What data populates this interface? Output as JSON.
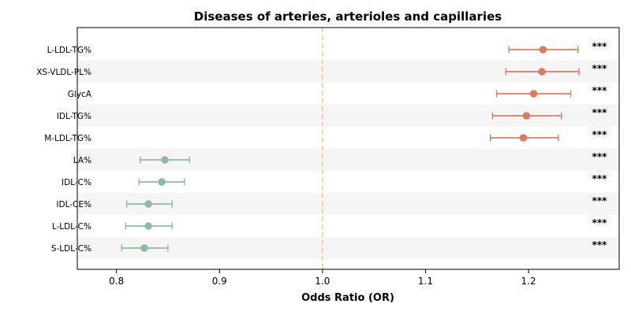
{
  "chart_data": {
    "type": "forest",
    "title": "Diseases of arteries, arterioles and capillaries",
    "xlabel": "Odds Ratio (OR)",
    "ylabel": "",
    "xlim": [
      0.762,
      1.288
    ],
    "xticks": [
      0.8,
      0.9,
      1.0,
      1.1,
      1.2
    ],
    "xtick_labels": [
      "0.8",
      "0.9",
      "1.0",
      "1.1",
      "1.2"
    ],
    "reference_line": 1.0,
    "grid": false,
    "colors": {
      "increased": "#e07b62",
      "decreased": "#8dbba0",
      "reference": "#f5c28a",
      "band": "#f5f5f5"
    },
    "rows": [
      {
        "label": "L-LDL-TG%",
        "or": 1.214,
        "lower": 1.181,
        "upper": 1.248,
        "sig": "***",
        "direction": "increased"
      },
      {
        "label": "XS-VLDL-PL%",
        "or": 1.213,
        "lower": 1.178,
        "upper": 1.249,
        "sig": "***",
        "direction": "increased"
      },
      {
        "label": "GlycA",
        "or": 1.205,
        "lower": 1.169,
        "upper": 1.241,
        "sig": "***",
        "direction": "increased"
      },
      {
        "label": "IDL-TG%",
        "or": 1.198,
        "lower": 1.165,
        "upper": 1.232,
        "sig": "***",
        "direction": "increased"
      },
      {
        "label": "M-LDL-TG%",
        "or": 1.195,
        "lower": 1.163,
        "upper": 1.229,
        "sig": "***",
        "direction": "increased"
      },
      {
        "label": "LA%",
        "or": 0.847,
        "lower": 0.823,
        "upper": 0.871,
        "sig": "***",
        "direction": "decreased"
      },
      {
        "label": "IDL-C%",
        "or": 0.844,
        "lower": 0.822,
        "upper": 0.866,
        "sig": "***",
        "direction": "decreased"
      },
      {
        "label": "IDL-CE%",
        "or": 0.831,
        "lower": 0.81,
        "upper": 0.854,
        "sig": "***",
        "direction": "decreased"
      },
      {
        "label": "L-LDL-C%",
        "or": 0.831,
        "lower": 0.809,
        "upper": 0.854,
        "sig": "***",
        "direction": "decreased"
      },
      {
        "label": "S-LDL-C%",
        "or": 0.827,
        "lower": 0.805,
        "upper": 0.85,
        "sig": "***",
        "direction": "decreased"
      }
    ]
  }
}
